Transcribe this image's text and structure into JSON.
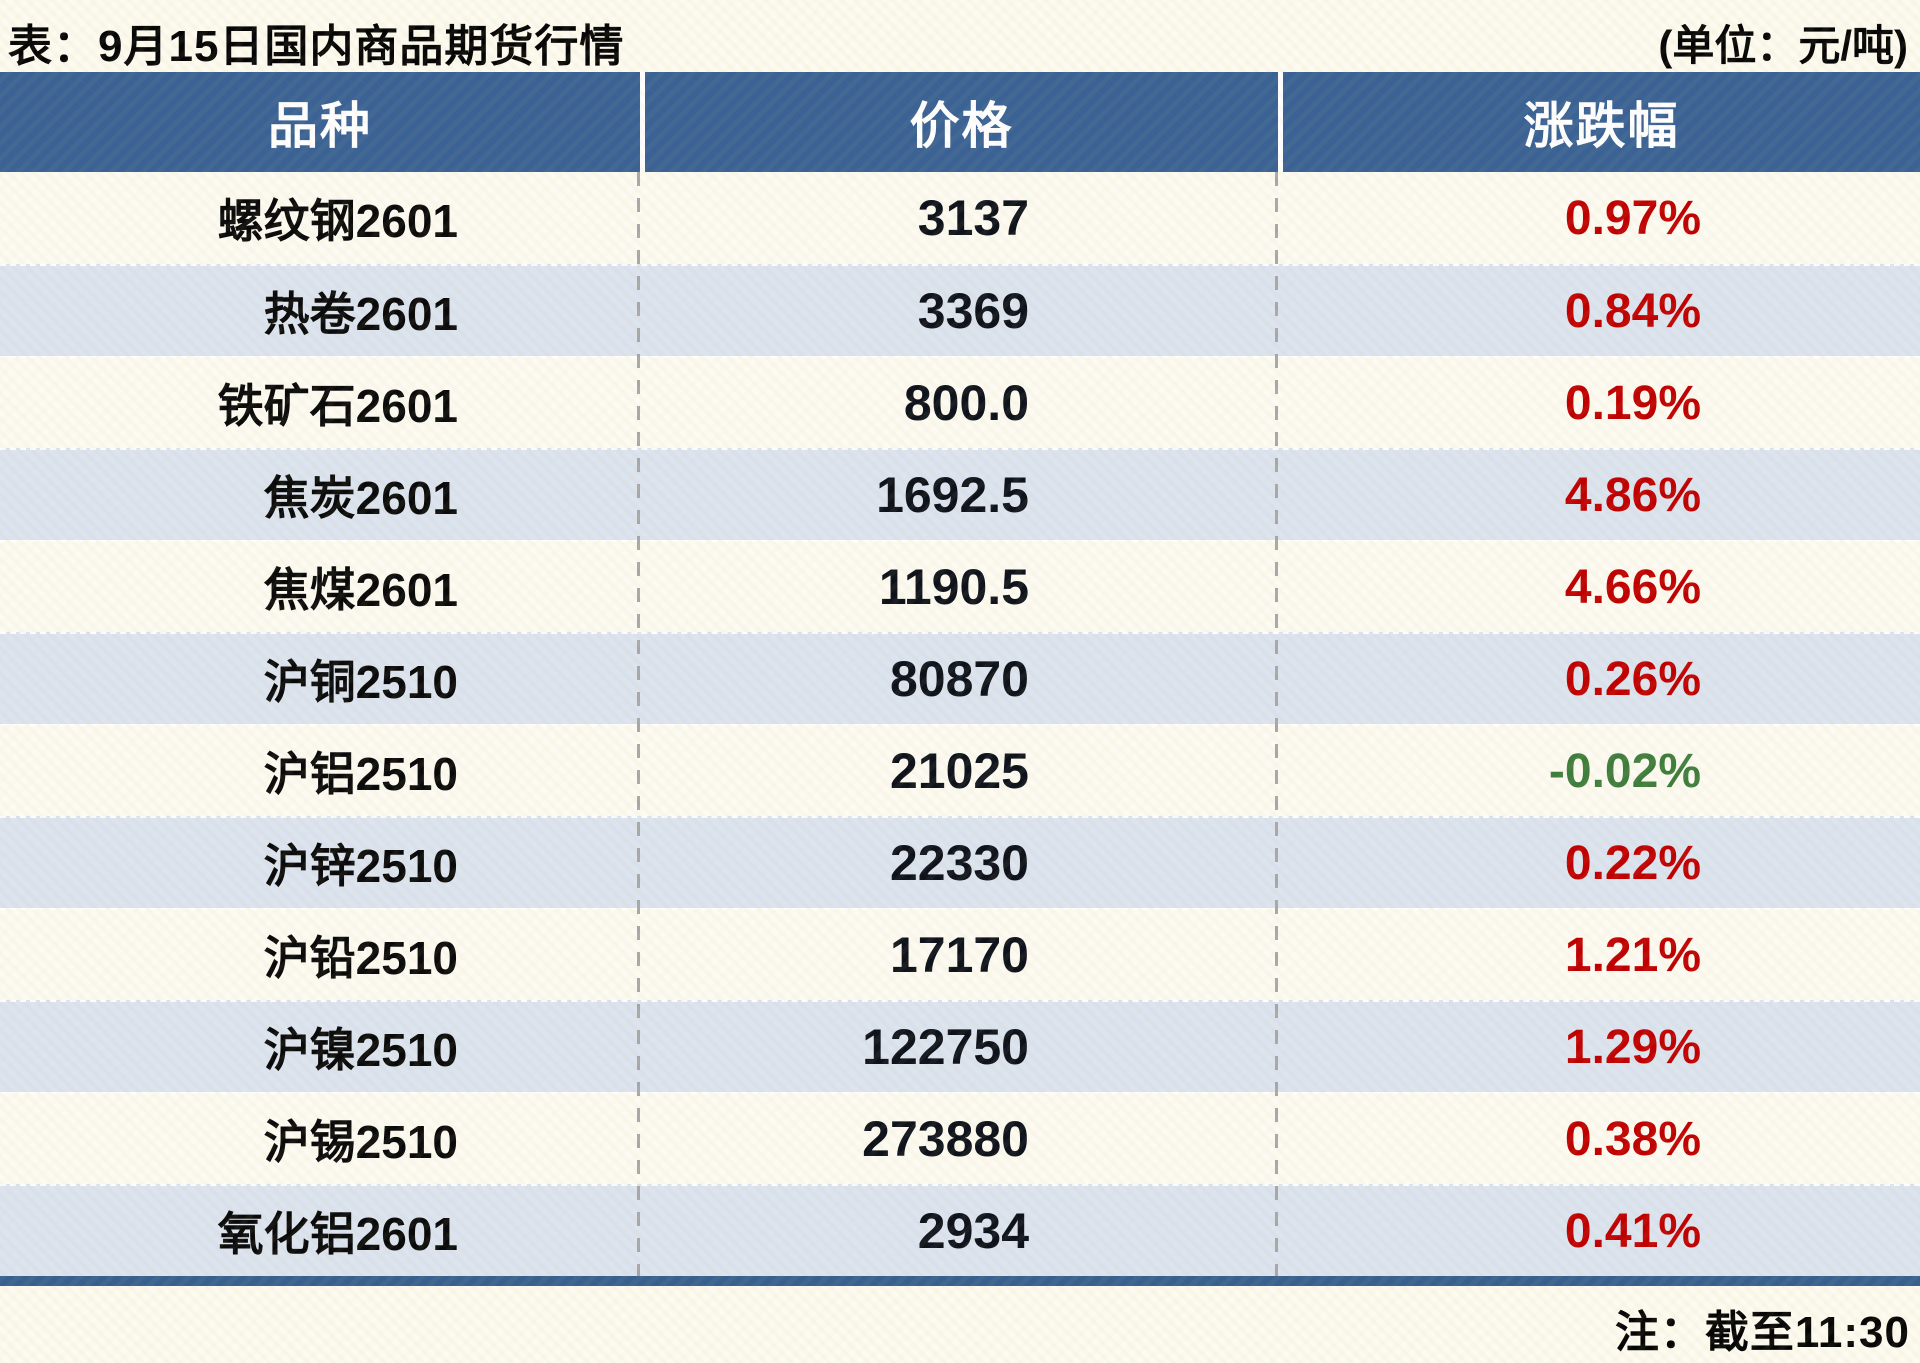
{
  "chart_data": {
    "type": "table",
    "title": "表：9月15日国内商品期货行情",
    "unit_label": "(单位：元/吨)",
    "note": "注：截至11:30",
    "columns": [
      "品种",
      "价格",
      "涨跌幅"
    ],
    "rows": [
      {
        "name": "螺纹钢2601",
        "price": "3137",
        "change": "0.97%",
        "direction": "up"
      },
      {
        "name": "热卷2601",
        "price": "3369",
        "change": "0.84%",
        "direction": "up"
      },
      {
        "name": "铁矿石2601",
        "price": "800.0",
        "change": "0.19%",
        "direction": "up"
      },
      {
        "name": "焦炭2601",
        "price": "1692.5",
        "change": "4.86%",
        "direction": "up"
      },
      {
        "name": "焦煤2601",
        "price": "1190.5",
        "change": "4.66%",
        "direction": "up"
      },
      {
        "name": "沪铜2510",
        "price": "80870",
        "change": "0.26%",
        "direction": "up"
      },
      {
        "name": "沪铝2510",
        "price": "21025",
        "change": "-0.02%",
        "direction": "down"
      },
      {
        "name": "沪锌2510",
        "price": "22330",
        "change": "0.22%",
        "direction": "up"
      },
      {
        "name": "沪铅2510",
        "price": "17170",
        "change": "1.21%",
        "direction": "up"
      },
      {
        "name": "沪镍2510",
        "price": "122750",
        "change": "1.29%",
        "direction": "up"
      },
      {
        "name": "沪锡2510",
        "price": "273880",
        "change": "0.38%",
        "direction": "up"
      },
      {
        "name": "氧化铝2601",
        "price": "2934",
        "change": "0.41%",
        "direction": "up"
      }
    ],
    "colors": {
      "up": "#c00000",
      "down": "#3e7d3c",
      "header_bg": "#3a6294",
      "header_text": "#ffffff",
      "row_alt_bg": "#dce4ef",
      "row_bg": "#fdfbf1",
      "bottom_bar": "#38608f",
      "divider": "#a8a8a8"
    },
    "layout": {
      "legend": "none",
      "grid": "dashed-column-dividers"
    }
  }
}
